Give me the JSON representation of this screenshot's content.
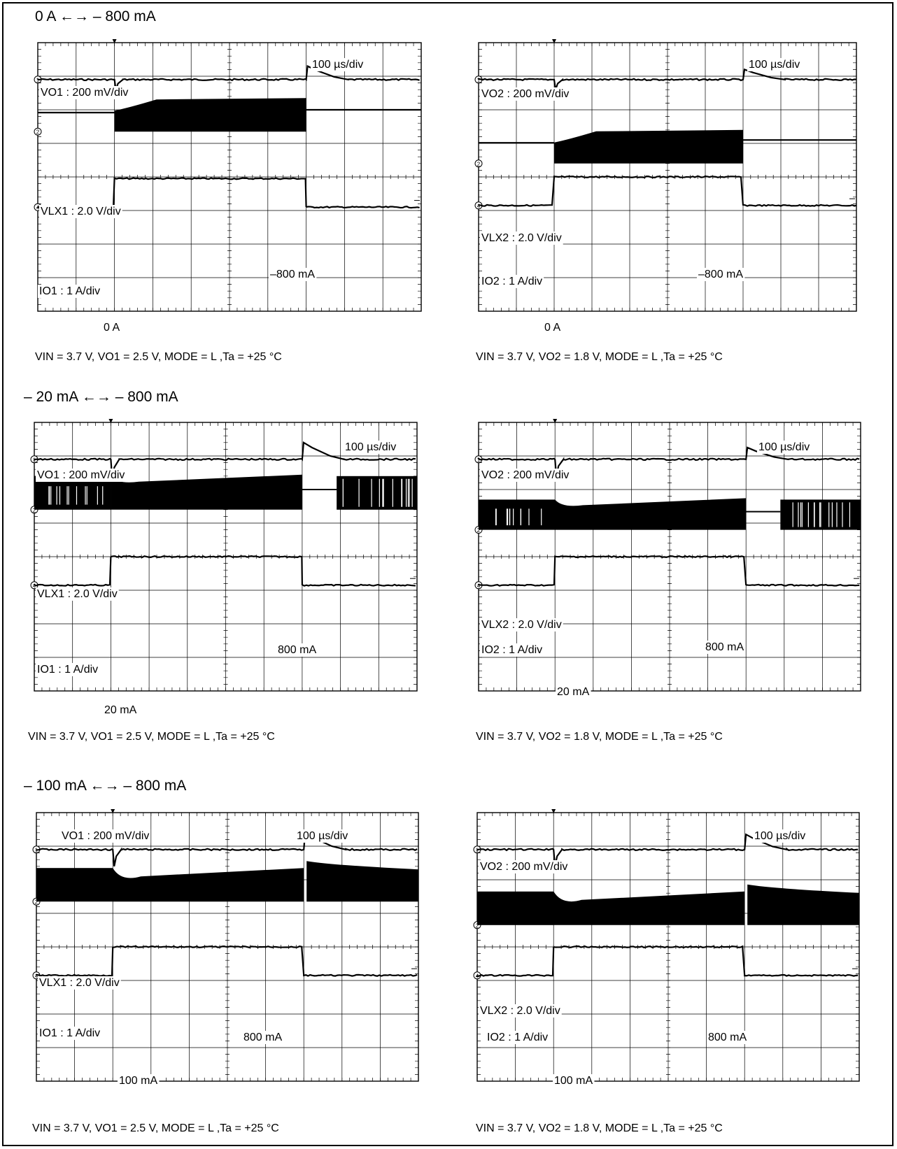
{
  "sections": [
    {
      "title": "0 A ←→ – 800 mA"
    },
    {
      "title": "– 20 mA ←→ – 800 mA"
    },
    {
      "title": "– 100 mA ←→ – 800 mA"
    }
  ],
  "chart_data": [
    {
      "type": "line",
      "timebase": "100 µs/div",
      "ch1_label": "VO1 : 200 mV/div",
      "ch2_label": "VLX1 : 2.0 V/div",
      "ch4_label": "IO1 : 1 A/div",
      "current_high": "–800 mA",
      "current_low": "0 A",
      "caption": "VIN = 3.7 V, VO1 = 2.5 V, MODE = L ,Ta =  +25 °C",
      "x_divisions": 10,
      "y_divisions": 8,
      "step_up_div": 2.0,
      "step_down_div": 7.0,
      "vout_overshoot_div": 0.4,
      "vout_undershoot_div": 0.3
    },
    {
      "type": "line",
      "timebase": "100 µs/div",
      "ch1_label": "VO2 : 200 mV/div",
      "ch2_label": "VLX2 : 2.0 V/div",
      "ch4_label": "IO2 : 1 A/div",
      "current_high": "–800 mA",
      "current_low": "0 A",
      "caption": "VIN = 3.7 V, VO2 = 1.8 V, MODE = L ,Ta =  +25 °C",
      "x_divisions": 10,
      "y_divisions": 8,
      "step_up_div": 2.0,
      "step_down_div": 7.0,
      "vout_overshoot_div": 0.3,
      "vout_undershoot_div": 0.3
    },
    {
      "type": "line",
      "timebase": "100 µs/div",
      "ch1_label": "VO1 : 200 mV/div",
      "ch2_label": "VLX1 : 2.0 V/div",
      "ch4_label": "IO1 : 1 A/div",
      "current_high": "800 mA",
      "current_low": "20 mA",
      "caption": "VIN = 3.7 V, VO1 = 2.5 V, MODE = L ,Ta =  +25 °C",
      "x_divisions": 10,
      "y_divisions": 8,
      "step_up_div": 2.0,
      "step_down_div": 7.0,
      "vout_overshoot_div": 0.5,
      "vout_undershoot_div": 0.6
    },
    {
      "type": "line",
      "timebase": "100 µs/div",
      "ch1_label": "VO2 : 200 mV/div",
      "ch2_label": "VLX2 : 2.0 V/div",
      "ch4_label": "IO2 : 1 A/div",
      "current_high": "800 mA",
      "current_low": "20 mA",
      "caption": "VIN = 3.7 V, VO2 = 1.8 V, MODE = L ,Ta =  +25 °C",
      "x_divisions": 10,
      "y_divisions": 8,
      "step_up_div": 2.0,
      "step_down_div": 7.0,
      "vout_overshoot_div": 0.35,
      "vout_undershoot_div": 0.5
    },
    {
      "type": "line",
      "timebase": "100 µs/div",
      "ch1_label": "VO1 : 200 mV/div",
      "ch2_label": "VLX1 : 2.0 V/div",
      "ch4_label": "IO1 : 1 A/div",
      "current_high": "800 mA",
      "current_low": "100 mA",
      "caption": "VIN = 3.7 V, VO1 = 2.5 V, MODE = L ,Ta =  +25 °C",
      "x_divisions": 10,
      "y_divisions": 8,
      "step_up_div": 2.0,
      "step_down_div": 7.0,
      "vout_overshoot_div": 0.5,
      "vout_undershoot_div": 0.5
    },
    {
      "type": "line",
      "timebase": "100 µs/div",
      "ch1_label": "VO2 : 200 mV/div",
      "ch2_label": "VLX2 : 2.0 V/div",
      "ch4_label": "IO2 : 1 A/div",
      "current_high": "800 mA",
      "current_low": "100 mA",
      "caption": "VIN = 3.7 V, VO2 = 1.8 V, MODE = L ,Ta = +25 °C",
      "x_divisions": 10,
      "y_divisions": 8,
      "step_up_div": 2.0,
      "step_down_div": 7.0,
      "vout_overshoot_div": 0.45,
      "vout_undershoot_div": 0.5
    }
  ]
}
